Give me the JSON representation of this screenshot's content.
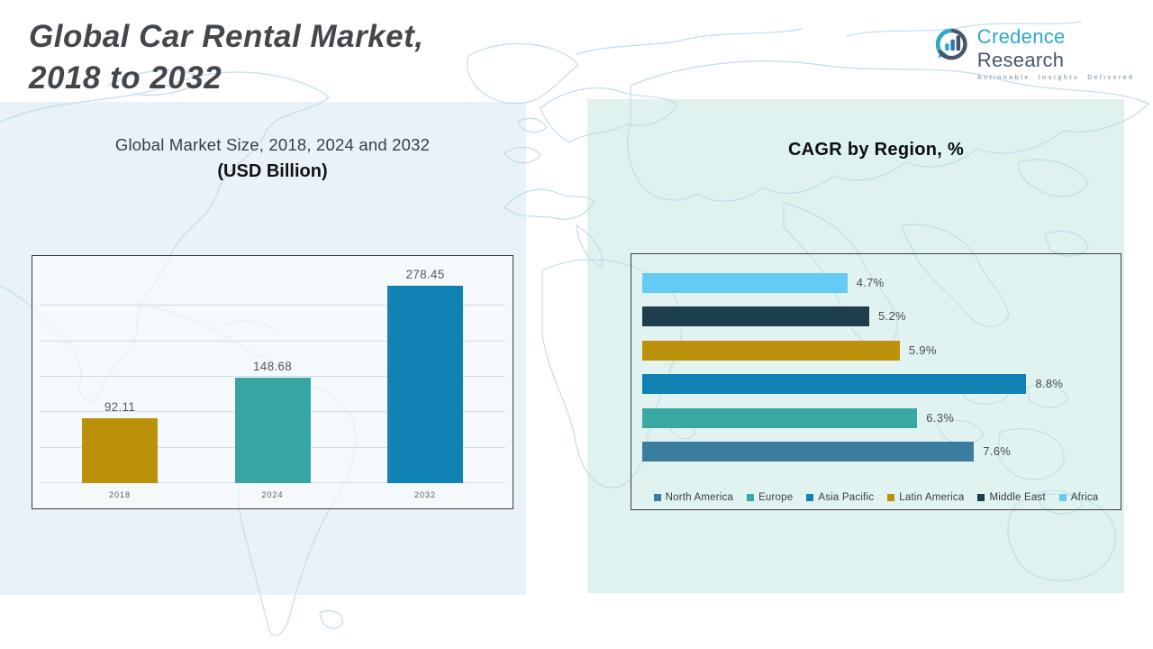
{
  "page": {
    "title_line1": "Global Car Rental Market,",
    "title_line2": "2018 to 2032"
  },
  "logo": {
    "brand_primary": "Credence",
    "brand_secondary": " Research",
    "tagline": "Actionable Insights Delivered",
    "icon": "bar-chart-speech-bubble-icon",
    "colors": {
      "primary": "#2BA9C9",
      "secondary": "#46566B",
      "tagline": "#9AA8B2"
    }
  },
  "palette": {
    "left_panel": "#E9F2F8",
    "right_panel": "#DFF2EF",
    "map_line": "#BEDCE9",
    "gold": "#BC920A",
    "teal": "#38A5A2",
    "blue": "#1182B4",
    "steel": "#3A7D9E",
    "navy": "#1D3E4D",
    "sky": "#63CBF5"
  },
  "chart_data": [
    {
      "type": "bar",
      "title": "Global Market Size, 2018, 2024 and 2032",
      "subtitle": "(USD Billion)",
      "categories": [
        "2018",
        "2024",
        "2032"
      ],
      "values": [
        92.11,
        148.68,
        278.45
      ],
      "value_labels": [
        "92.11",
        "148.68",
        "278.45"
      ],
      "colors": [
        "#BC920A",
        "#38A5A2",
        "#1182B4"
      ],
      "ylabel": "",
      "xlabel": "",
      "ylim": [
        0,
        320
      ],
      "grid_step": 50,
      "grid": true,
      "legend_position": "none"
    },
    {
      "type": "bar",
      "orientation": "horizontal",
      "title": "CAGR by Region, %",
      "rows_top_to_bottom": [
        {
          "region": "Africa",
          "value": 4.7,
          "label": "4.7%",
          "color": "#63CBF5"
        },
        {
          "region": "Middle East",
          "value": 5.2,
          "label": "5.2%",
          "color": "#1D3E4D"
        },
        {
          "region": "Latin America",
          "value": 5.9,
          "label": "5.9%",
          "color": "#BC920A"
        },
        {
          "region": "Asia Pacific",
          "value": 8.8,
          "label": "8.8%",
          "color": "#0F81B3"
        },
        {
          "region": "Europe",
          "value": 6.3,
          "label": "6.3%",
          "color": "#39A8A2"
        },
        {
          "region": "North America",
          "value": 7.6,
          "label": "7.6%",
          "color": "#3A7D9E"
        }
      ],
      "legend": [
        {
          "label": "North America",
          "color": "#3A7D9E"
        },
        {
          "label": "Europe",
          "color": "#39A8A2"
        },
        {
          "label": "Asia Pacific",
          "color": "#0F81B3"
        },
        {
          "label": "Latin America",
          "color": "#BC920A"
        },
        {
          "label": "Middle East",
          "color": "#1D3E4D"
        },
        {
          "label": "Africa",
          "color": "#63CBF5"
        }
      ],
      "xlim": [
        0,
        11
      ],
      "grid": false,
      "legend_position": "bottom"
    }
  ]
}
